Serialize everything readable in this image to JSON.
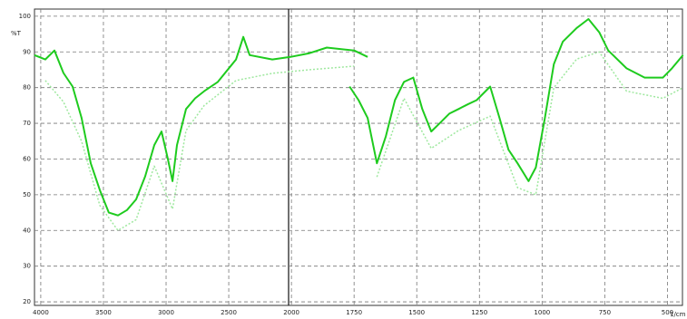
{
  "chart_data": {
    "type": "line",
    "y_label": "%T",
    "x_label": "1/cm",
    "xlim": [
      4050,
      440
    ],
    "xticks": [
      4000,
      3500,
      3000,
      2500,
      2000,
      1750,
      1500,
      1250,
      1000,
      750,
      500
    ],
    "ylim": [
      19,
      102
    ],
    "yticks": [
      20,
      30,
      40,
      50,
      60,
      70,
      80,
      90,
      100
    ],
    "grid": true,
    "series": [
      {
        "color": "#1ecb1e",
        "width": 2,
        "x": [
          4051,
          3964,
          3891,
          3819,
          3746,
          3674,
          3601,
          3529,
          3457,
          3384,
          3312,
          3239,
          3167,
          3094,
          3036,
          2986,
          2949,
          2913,
          2841,
          2768,
          2696,
          2587,
          2442,
          2384,
          2333,
          2152,
          2007,
          1931,
          1859,
          1750,
          1696,
          null,
          1768,
          1732,
          1696,
          1659,
          1623,
          1587,
          1551,
          1514,
          1478,
          1442,
          1406,
          1370,
          1333,
          1297,
          1261,
          1207,
          1170,
          1134,
          1098,
          1054,
          1025,
          989,
          953,
          917,
          862,
          815,
          772,
          736,
          663,
          591,
          518,
          482,
          438
        ],
        "values": [
          89.1,
          87.9,
          90.4,
          84.1,
          80.3,
          71.5,
          58.8,
          51.3,
          45.0,
          44.2,
          45.7,
          48.7,
          55.1,
          63.9,
          67.7,
          60.1,
          53.8,
          63.9,
          74.0,
          77.0,
          79.0,
          81.6,
          87.9,
          94.2,
          89.1,
          87.9,
          88.6,
          89.6,
          91.2,
          90.4,
          88.6,
          null,
          80.3,
          76.5,
          71.5,
          58.8,
          66.4,
          76.5,
          81.6,
          82.8,
          74.0,
          67.7,
          70.2,
          72.7,
          74.0,
          75.3,
          76.5,
          80.3,
          71.5,
          62.6,
          58.8,
          53.8,
          57.6,
          71.5,
          86.6,
          92.9,
          96.7,
          99.2,
          95.5,
          90.4,
          85.4,
          82.8,
          82.8,
          85.4,
          89.1
        ]
      },
      {
        "color": "#9fe89f",
        "width": 1.5,
        "dash": true,
        "x": [
          3964,
          3819,
          3674,
          3529,
          3384,
          3239,
          3094,
          2949,
          2841,
          2696,
          2442,
          2152,
          1931,
          1750,
          null,
          1659,
          1551,
          1442,
          1333,
          1207,
          1098,
          1025,
          953,
          862,
          772,
          663,
          518,
          438
        ],
        "values": [
          82.0,
          76.0,
          65.0,
          47.0,
          40.0,
          43.0,
          58.0,
          46.0,
          68.0,
          75.0,
          82.0,
          84.0,
          85.0,
          86.0,
          null,
          55.0,
          77.0,
          63.0,
          68.0,
          72.0,
          52.0,
          50.0,
          80.0,
          88.0,
          90.0,
          79.0,
          77.0,
          80.0
        ]
      }
    ]
  }
}
